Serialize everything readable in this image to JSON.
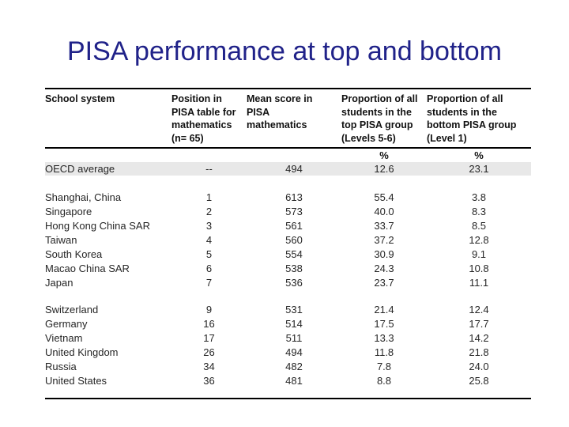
{
  "slide": {
    "title": "PISA performance at top and bottom",
    "title_color": "#202289",
    "background_color": "#ffffff"
  },
  "table": {
    "summary_shade_color": "#e8e8e8",
    "border_color": "#000000",
    "columns": [
      {
        "header": "School system"
      },
      {
        "header": "Position in\nPISA table for\nmathematics\n(n= 65)"
      },
      {
        "header": "Mean score in\nPISA\nmathematics"
      },
      {
        "header": "Proportion of all\nstudents in the\ntop PISA group\n(Levels 5-6)"
      },
      {
        "header": "Proportion of all\nstudents in the\nbottom PISA group\n(Level 1)"
      }
    ],
    "percent_row": [
      "",
      "",
      "",
      "%",
      "%"
    ],
    "summary_row": {
      "cells": [
        "OECD average",
        "--",
        "494",
        "12.6",
        "23.1"
      ]
    },
    "groups": [
      {
        "name": "top-performers",
        "rows": [
          [
            "Shanghai, China",
            "1",
            "613",
            "55.4",
            "3.8"
          ],
          [
            "Singapore",
            "2",
            "573",
            "40.0",
            "8.3"
          ],
          [
            "Hong Kong China SAR",
            "3",
            "561",
            "33.7",
            "8.5"
          ],
          [
            "Taiwan",
            "4",
            "560",
            "37.2",
            "12.8"
          ],
          [
            "South Korea",
            "5",
            "554",
            "30.9",
            "9.1"
          ],
          [
            "Macao China SAR",
            "6",
            "538",
            "24.3",
            "10.8"
          ],
          [
            "Japan",
            "7",
            "536",
            "23.7",
            "11.1"
          ]
        ]
      },
      {
        "name": "selected-countries",
        "rows": [
          [
            "Switzerland",
            "9",
            "531",
            "21.4",
            "12.4"
          ],
          [
            "Germany",
            "16",
            "514",
            "17.5",
            "17.7"
          ],
          [
            "Vietnam",
            "17",
            "511",
            "13.3",
            "14.2"
          ],
          [
            "United Kingdom",
            "26",
            "494",
            "11.8",
            "21.8"
          ],
          [
            "Russia",
            "34",
            "482",
            "7.8",
            "24.0"
          ],
          [
            "United States",
            "36",
            "481",
            "8.8",
            "25.8"
          ]
        ]
      }
    ]
  }
}
